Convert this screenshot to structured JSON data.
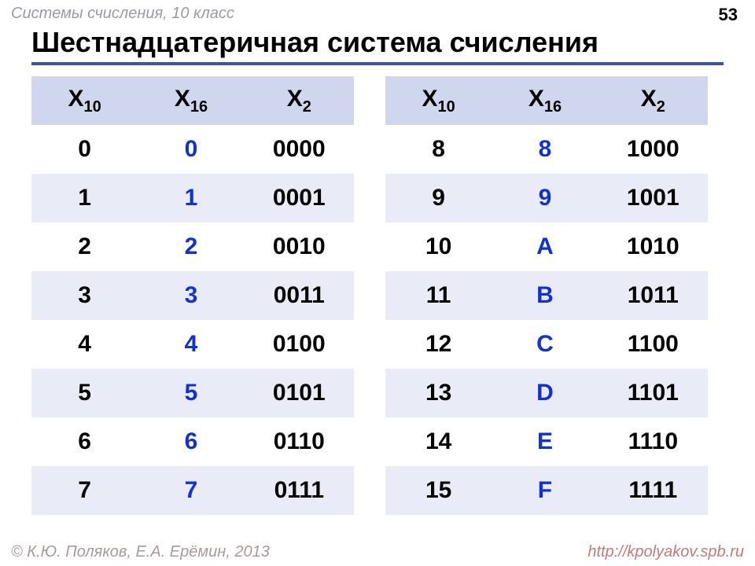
{
  "header": {
    "breadcrumb": "Системы счисления, 10 класс",
    "page_number": "53"
  },
  "title": "Шестнадцатеричная система счисления",
  "columns": {
    "c1_base": "10",
    "c2_base": "16",
    "c3_base": "2",
    "sym": "X"
  },
  "colors": {
    "header_bg": "#d0d6ee",
    "row_alt_bg": "#e9ebf6",
    "hex_text": "#1030d8",
    "title_underline": "#3a50b8"
  },
  "left_rows": [
    {
      "dec": "0",
      "hex": "0",
      "bin": "0000"
    },
    {
      "dec": "1",
      "hex": "1",
      "bin": "0001"
    },
    {
      "dec": "2",
      "hex": "2",
      "bin": "0010"
    },
    {
      "dec": "3",
      "hex": "3",
      "bin": "0011"
    },
    {
      "dec": "4",
      "hex": "4",
      "bin": "0100"
    },
    {
      "dec": "5",
      "hex": "5",
      "bin": "0101"
    },
    {
      "dec": "6",
      "hex": "6",
      "bin": "0110"
    },
    {
      "dec": "7",
      "hex": "7",
      "bin": "0111"
    }
  ],
  "right_rows": [
    {
      "dec": "8",
      "hex": "8",
      "bin": "1000"
    },
    {
      "dec": "9",
      "hex": "9",
      "bin": "1001"
    },
    {
      "dec": "10",
      "hex": "A",
      "bin": "1010"
    },
    {
      "dec": "11",
      "hex": "B",
      "bin": "1011"
    },
    {
      "dec": "12",
      "hex": "C",
      "bin": "1100"
    },
    {
      "dec": "13",
      "hex": "D",
      "bin": "1101"
    },
    {
      "dec": "14",
      "hex": "E",
      "bin": "1110"
    },
    {
      "dec": "15",
      "hex": "F",
      "bin": "1111"
    }
  ],
  "footer": {
    "copyright": "© К.Ю. Поляков, Е.А. Ерёмин, 2013",
    "url": "http://kpolyakov.spb.ru"
  }
}
